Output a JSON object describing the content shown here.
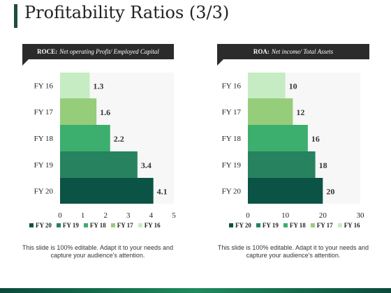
{
  "page": {
    "title": "Profitability Ratios (3/3)"
  },
  "colors": {
    "FY 20": "#0b5345",
    "FY 19": "#27825f",
    "FY 18": "#3cae6e",
    "FY 17": "#96cd7a",
    "FY 16": "#c5ecc2"
  },
  "chart_data": [
    {
      "type": "bar",
      "orientation": "horizontal",
      "header_bold": "ROCE:",
      "header_italic": "Net operating Profit/ Employed Capital",
      "categories": [
        "FY 16",
        "FY 17",
        "FY 18",
        "FY 19",
        "FY 20"
      ],
      "values": [
        1.3,
        1.6,
        2.2,
        3.4,
        4.1
      ],
      "xlim": [
        0,
        5
      ],
      "xticks": [
        "0",
        "1",
        "2",
        "3",
        "4",
        "5"
      ],
      "legend": [
        "FY 20",
        "FY 19",
        "FY 18",
        "FY 17",
        "FY 16"
      ],
      "legend_position": "bottom",
      "grid": false,
      "caption": "This slide is 100% editable. Adapt it to your needs and capture your audience's attention."
    },
    {
      "type": "bar",
      "orientation": "horizontal",
      "header_bold": "ROA:",
      "header_italic": "Net income/ Total Assets",
      "categories": [
        "FY 16",
        "FY 17",
        "FY 18",
        "FY 19",
        "FY 20"
      ],
      "values": [
        10,
        12,
        16,
        18,
        20
      ],
      "xlim": [
        0,
        30
      ],
      "xticks": [
        "0",
        "10",
        "20",
        "30"
      ],
      "legend": [
        "FY 20",
        "FY 19",
        "FY 18",
        "FY 17",
        "FY 16"
      ],
      "legend_position": "bottom",
      "grid": false,
      "caption": "This slide is 100% editable. Adapt it to your needs and capture your audience's attention."
    }
  ]
}
